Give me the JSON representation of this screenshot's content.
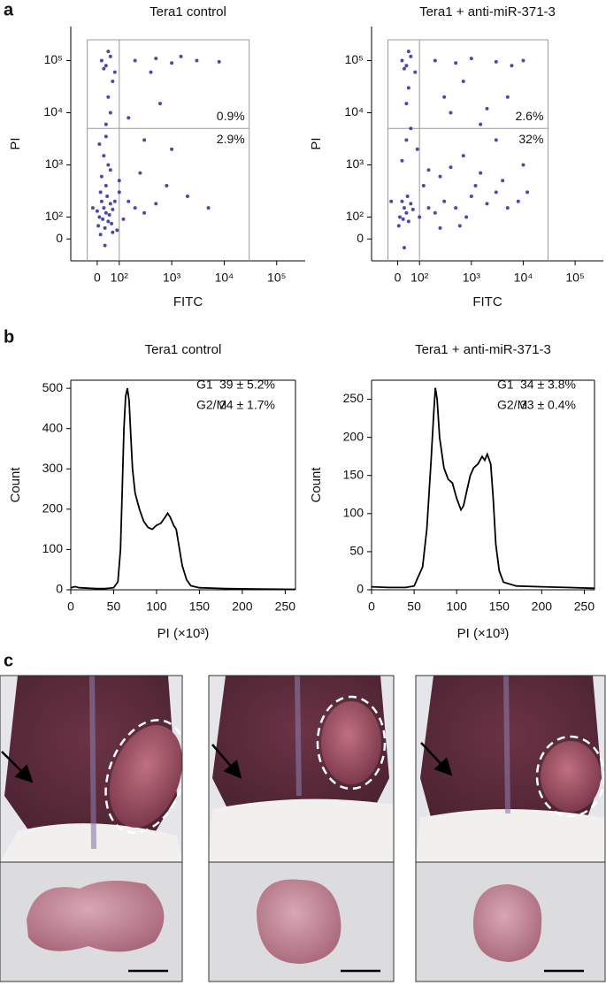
{
  "panel_labels": [
    "a",
    "b",
    "c"
  ],
  "chart_data": [
    {
      "type": "scatter",
      "title": "Tera1 control",
      "x_label": "FITC",
      "y_label": "PI",
      "scale": "biexponential",
      "xlim": [
        -120,
        350000
      ],
      "ylim": [
        -100,
        450000
      ],
      "xticks": [
        0,
        {
          "value": 100,
          "label": "10²"
        },
        {
          "value": 1000,
          "label": "10³"
        },
        {
          "value": 10000,
          "label": "10⁴"
        },
        {
          "value": 100000,
          "label": "10⁵"
        }
      ],
      "yticks": [
        0,
        {
          "value": 100,
          "label": "10²"
        },
        {
          "value": 1000,
          "label": "10³"
        },
        {
          "value": 10000,
          "label": "10⁴"
        },
        {
          "value": 100000,
          "label": "10⁵"
        }
      ],
      "gate": {
        "x": 100,
        "y": 5000
      },
      "gate_box": {
        "xlim": [
          -45,
          30000
        ],
        "ylim": [
          -100,
          250000
        ]
      },
      "annotations": [
        "0.9%",
        "2.9%"
      ],
      "series": [
        {
          "color": "#2a2a9e",
          "x": [
            10,
            30,
            50,
            20,
            40,
            60,
            5,
            25,
            45,
            70,
            15,
            35,
            55,
            0,
            80,
            65,
            40,
            20,
            50,
            30,
            60,
            10,
            40,
            100,
            150,
            200,
            300,
            500,
            120,
            90,
            40,
            60,
            20,
            80,
            50,
            30,
            70,
            200,
            500,
            1000,
            3000,
            8000,
            1500,
            50,
            60,
            40,
            2000,
            800,
            5000,
            300,
            1000,
            150,
            400,
            600,
            100,
            250,
            35,
            -20,
            15,
            70
          ],
          "values": [
            100,
            150,
            80,
            200,
            120,
            180,
            60,
            90,
            250,
            140,
            300,
            50,
            110,
            130,
            200,
            70,
            400,
            600,
            1000,
            1500,
            800,
            2500,
            3500,
            300,
            200,
            150,
            120,
            180,
            90,
            40,
            80000,
            120000,
            100000,
            60000,
            150000,
            70000,
            40000,
            100000,
            110000,
            90000,
            100000,
            95000,
            120000,
            20000,
            10000,
            6000,
            250,
            400,
            150,
            3000,
            2000,
            8000,
            60000,
            15000,
            500,
            700,
            -30,
            150,
            20,
            30
          ]
        }
      ]
    },
    {
      "type": "scatter",
      "title": "Tera1 + anti-miR-371-3",
      "x_label": "FITC",
      "y_label": "PI",
      "scale": "biexponential",
      "xlim": [
        -120,
        350000
      ],
      "ylim": [
        -100,
        450000
      ],
      "xticks": [
        0,
        {
          "value": 100,
          "label": "10²"
        },
        {
          "value": 1000,
          "label": "10³"
        },
        {
          "value": 10000,
          "label": "10⁴"
        },
        {
          "value": 100000,
          "label": "10⁵"
        }
      ],
      "yticks": [
        0,
        {
          "value": 100,
          "label": "10²"
        },
        {
          "value": 1000,
          "label": "10³"
        },
        {
          "value": 10000,
          "label": "10⁴"
        },
        {
          "value": 100000,
          "label": "10⁵"
        }
      ],
      "gate": {
        "x": 100,
        "y": 5000
      },
      "gate_box": {
        "xlim": [
          -45,
          30000
        ],
        "ylim": [
          -100,
          250000
        ]
      },
      "annotations": [
        "2.6%",
        "32%"
      ],
      "series": [
        {
          "color": "#2a2a9e",
          "x": [
            10,
            30,
            50,
            20,
            40,
            60,
            5,
            25,
            45,
            70,
            100,
            150,
            200,
            300,
            500,
            800,
            1000,
            2000,
            3000,
            5000,
            120,
            250,
            400,
            700,
            1500,
            90,
            60,
            40,
            8000,
            600,
            40,
            60,
            20,
            80,
            50,
            30,
            200,
            500,
            1000,
            3000,
            10000,
            6000,
            50,
            40,
            300,
            2000,
            3000,
            10000,
            1500,
            700,
            5000,
            400,
            30,
            -30,
            250,
            1200,
            150,
            20,
            4000,
            12000
          ],
          "values": [
            100,
            150,
            80,
            200,
            120,
            180,
            60,
            90,
            250,
            140,
            100,
            150,
            120,
            200,
            150,
            100,
            250,
            180,
            300,
            150,
            400,
            600,
            900,
            1500,
            700,
            2000,
            5000,
            3000,
            200,
            60,
            80000,
            120000,
            100000,
            60000,
            150000,
            70000,
            100000,
            90000,
            110000,
            95000,
            100000,
            80000,
            30000,
            15000,
            20000,
            12000,
            3000,
            1000,
            6000,
            40000,
            20000,
            10000,
            -40,
            200,
            50,
            400,
            800,
            1200,
            500,
            300
          ]
        }
      ]
    },
    {
      "type": "line",
      "title": "Tera1 control",
      "x_label": "PI (×10³)",
      "y_label": "Count",
      "color": "#000000",
      "xlim": [
        0,
        262
      ],
      "ylim": [
        0,
        520
      ],
      "xticks": [
        0,
        50,
        100,
        150,
        200,
        250
      ],
      "yticks": [
        0,
        100,
        200,
        300,
        400,
        500
      ],
      "stats": [
        {
          "phase": "G1",
          "value": "39 ± 5.2%"
        },
        {
          "phase": "G2/M",
          "value": "24 ± 1.7%"
        }
      ],
      "x": [
        0,
        5,
        10,
        20,
        30,
        40,
        50,
        55,
        58,
        60,
        62,
        64,
        66,
        68,
        70,
        72,
        75,
        80,
        85,
        90,
        95,
        100,
        105,
        110,
        113,
        116,
        120,
        123,
        126,
        130,
        135,
        140,
        150,
        180,
        220,
        262
      ],
      "values": [
        5,
        8,
        5,
        4,
        3,
        3,
        5,
        20,
        100,
        250,
        400,
        480,
        500,
        470,
        380,
        300,
        240,
        200,
        170,
        155,
        150,
        160,
        165,
        180,
        190,
        180,
        160,
        150,
        110,
        60,
        25,
        10,
        5,
        3,
        2,
        1
      ]
    },
    {
      "type": "line",
      "title": "Tera1 + anti-miR-371-3",
      "x_label": "PI (×10³)",
      "y_label": "Count",
      "color": "#000000",
      "xlim": [
        0,
        262
      ],
      "ylim": [
        0,
        275
      ],
      "xticks": [
        0,
        50,
        100,
        150,
        200,
        250
      ],
      "yticks": [
        0,
        50,
        100,
        150,
        200,
        250
      ],
      "stats": [
        {
          "phase": "G1",
          "value": "34 ± 3.8%"
        },
        {
          "phase": "G2/M",
          "value": "33 ± 0.4%"
        }
      ],
      "x": [
        0,
        20,
        40,
        50,
        60,
        65,
        70,
        73,
        75,
        77,
        80,
        85,
        90,
        95,
        100,
        105,
        108,
        112,
        116,
        120,
        125,
        130,
        133,
        136,
        140,
        143,
        146,
        150,
        155,
        170,
        200,
        230,
        262
      ],
      "values": [
        4,
        3,
        3,
        5,
        30,
        80,
        170,
        230,
        265,
        250,
        200,
        160,
        145,
        140,
        120,
        105,
        110,
        130,
        150,
        160,
        165,
        175,
        170,
        178,
        165,
        120,
        60,
        25,
        10,
        5,
        4,
        3,
        2
      ]
    }
  ]
}
